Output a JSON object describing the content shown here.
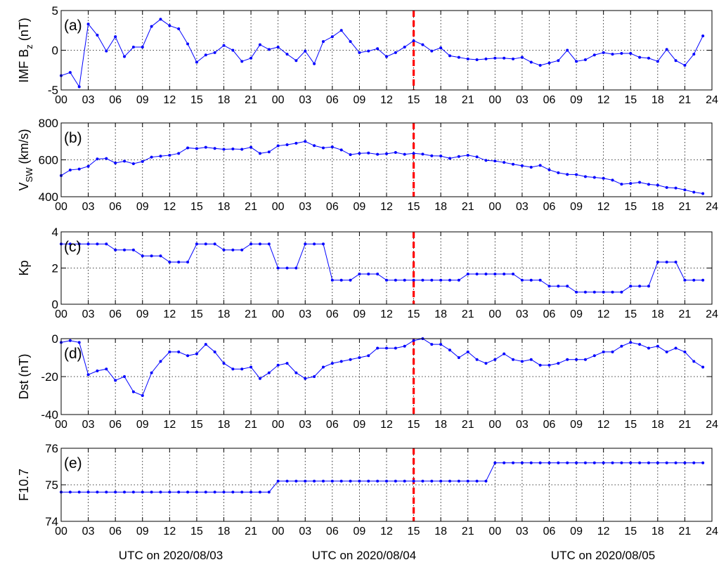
{
  "x_ticks": [
    "00",
    "03",
    "06",
    "09",
    "12",
    "15",
    "18",
    "21",
    "00",
    "03",
    "06",
    "09",
    "12",
    "15",
    "18",
    "21",
    "00",
    "03",
    "06",
    "09",
    "12",
    "15",
    "18",
    "21",
    "24"
  ],
  "date_labels": [
    "UTC on 2020/08/03",
    "UTC on 2020/08/04",
    "UTC on 2020/08/05"
  ],
  "event_marker": {
    "hour": 39,
    "color": "#ff0000"
  },
  "series_color": "#0000ff",
  "chart_data": [
    {
      "type": "line",
      "panel_label": "(a)",
      "ylabel": "IMF B",
      "ylabel_sub": "z",
      "ylabel_unit": " (nT)",
      "ylim": [
        -5,
        5
      ],
      "yticks": [
        "-5",
        "0",
        "5"
      ],
      "ytick_values": [
        -5,
        0,
        5
      ],
      "xlim": [
        0,
        72
      ],
      "grid": true,
      "x": [
        0,
        1,
        2,
        3,
        4,
        5,
        6,
        7,
        8,
        9,
        10,
        11,
        12,
        13,
        14,
        15,
        16,
        17,
        18,
        19,
        20,
        21,
        22,
        23,
        24,
        25,
        26,
        27,
        28,
        29,
        30,
        31,
        32,
        33,
        34,
        35,
        36,
        37,
        38,
        39,
        40,
        41,
        42,
        43,
        44,
        45,
        46,
        47,
        48,
        49,
        50,
        51,
        52,
        53,
        54,
        55,
        56,
        57,
        58,
        59,
        60,
        61,
        62,
        63,
        64,
        65,
        66,
        67,
        68,
        69,
        70,
        71
      ],
      "values": [
        -3.2,
        -2.8,
        -4.6,
        3.3,
        1.9,
        -0.1,
        1.7,
        -0.8,
        0.4,
        0.4,
        3.0,
        3.9,
        3.1,
        2.7,
        0.8,
        -1.5,
        -0.6,
        -0.3,
        0.6,
        0.0,
        -1.4,
        -1.0,
        0.7,
        0.1,
        0.4,
        -0.5,
        -1.3,
        -0.1,
        -1.7,
        1.1,
        1.7,
        2.5,
        1.1,
        -0.3,
        -0.1,
        0.2,
        -0.8,
        -0.3,
        0.4,
        1.2,
        0.7,
        -0.1,
        0.3,
        -0.7,
        -0.9,
        -1.1,
        -1.2,
        -1.1,
        -1.0,
        -1.0,
        -1.1,
        -0.9,
        -1.5,
        -1.9,
        -1.6,
        -1.3,
        0.0,
        -1.4,
        -1.2,
        -0.6,
        -0.3,
        -0.5,
        -0.4,
        -0.4,
        -0.9,
        -1.0,
        -1.4,
        0.1,
        -1.3,
        -1.9,
        -0.5,
        1.8
      ]
    },
    {
      "type": "line",
      "panel_label": "(b)",
      "ylabel": "V",
      "ylabel_sub": "SW",
      "ylabel_unit": " (km/s)",
      "ylim": [
        400,
        800
      ],
      "yticks": [
        "400",
        "600",
        "800"
      ],
      "ytick_values": [
        400,
        600,
        800
      ],
      "xlim": [
        0,
        72
      ],
      "grid": true,
      "x": [
        0,
        1,
        2,
        3,
        4,
        5,
        6,
        7,
        8,
        9,
        10,
        11,
        12,
        13,
        14,
        15,
        16,
        17,
        18,
        19,
        20,
        21,
        22,
        23,
        24,
        25,
        26,
        27,
        28,
        29,
        30,
        31,
        32,
        33,
        34,
        35,
        36,
        37,
        38,
        39,
        40,
        41,
        42,
        43,
        44,
        45,
        46,
        47,
        48,
        49,
        50,
        51,
        52,
        53,
        54,
        55,
        56,
        57,
        58,
        59,
        60,
        61,
        62,
        63,
        64,
        65,
        66,
        67,
        68,
        69,
        70,
        71
      ],
      "values": [
        515,
        545,
        550,
        565,
        605,
        607,
        583,
        593,
        579,
        591,
        615,
        620,
        625,
        635,
        665,
        661,
        668,
        662,
        657,
        659,
        657,
        668,
        635,
        643,
        676,
        682,
        690,
        700,
        677,
        665,
        670,
        654,
        628,
        635,
        637,
        630,
        633,
        640,
        630,
        635,
        631,
        622,
        621,
        608,
        618,
        625,
        616,
        597,
        594,
        586,
        576,
        568,
        560,
        570,
        546,
        530,
        521,
        520,
        509,
        505,
        500,
        490,
        468,
        472,
        478,
        467,
        463,
        450,
        447,
        437,
        425,
        417
      ]
    },
    {
      "type": "line",
      "panel_label": "(c)",
      "ylabel": "Kp",
      "ylabel_sub": "",
      "ylabel_unit": "",
      "ylim": [
        0,
        4
      ],
      "yticks": [
        "0",
        "2",
        "4"
      ],
      "ytick_values": [
        0,
        2,
        4
      ],
      "xlim": [
        0,
        72
      ],
      "grid": true,
      "x": [
        0,
        1,
        2,
        3,
        4,
        5,
        6,
        7,
        8,
        9,
        10,
        11,
        12,
        13,
        14,
        15,
        16,
        17,
        18,
        19,
        20,
        21,
        22,
        23,
        24,
        25,
        26,
        27,
        28,
        29,
        30,
        31,
        32,
        33,
        34,
        35,
        36,
        37,
        38,
        39,
        40,
        41,
        42,
        43,
        44,
        45,
        46,
        47,
        48,
        49,
        50,
        51,
        52,
        53,
        54,
        55,
        56,
        57,
        58,
        59,
        60,
        61,
        62,
        63,
        64,
        65,
        66,
        67,
        68,
        69,
        70,
        71
      ],
      "values": [
        3.33,
        3.33,
        3.33,
        3.33,
        3.33,
        3.33,
        3.0,
        3.0,
        3.0,
        2.67,
        2.67,
        2.67,
        2.33,
        2.33,
        2.33,
        3.33,
        3.33,
        3.33,
        3.0,
        3.0,
        3.0,
        3.33,
        3.33,
        3.33,
        2.0,
        2.0,
        2.0,
        3.33,
        3.33,
        3.33,
        1.33,
        1.33,
        1.33,
        1.67,
        1.67,
        1.67,
        1.33,
        1.33,
        1.33,
        1.33,
        1.33,
        1.33,
        1.33,
        1.33,
        1.33,
        1.67,
        1.67,
        1.67,
        1.67,
        1.67,
        1.67,
        1.33,
        1.33,
        1.33,
        1.0,
        1.0,
        1.0,
        0.67,
        0.67,
        0.67,
        0.67,
        0.67,
        0.67,
        1.0,
        1.0,
        1.0,
        2.33,
        2.33,
        2.33,
        1.33,
        1.33,
        1.33
      ]
    },
    {
      "type": "line",
      "panel_label": "(d)",
      "ylabel": "Dst (nT)",
      "ylabel_sub": "",
      "ylabel_unit": "",
      "ylim": [
        -40,
        0
      ],
      "yticks": [
        "-40",
        "-20",
        "0"
      ],
      "ytick_values": [
        -40,
        -20,
        0
      ],
      "xlim": [
        0,
        72
      ],
      "grid": true,
      "x": [
        0,
        1,
        2,
        3,
        4,
        5,
        6,
        7,
        8,
        9,
        10,
        11,
        12,
        13,
        14,
        15,
        16,
        17,
        18,
        19,
        20,
        21,
        22,
        23,
        24,
        25,
        26,
        27,
        28,
        29,
        30,
        31,
        32,
        33,
        34,
        35,
        36,
        37,
        38,
        39,
        40,
        41,
        42,
        43,
        44,
        45,
        46,
        47,
        48,
        49,
        50,
        51,
        52,
        53,
        54,
        55,
        56,
        57,
        58,
        59,
        60,
        61,
        62,
        63,
        64,
        65,
        66,
        67,
        68,
        69,
        70,
        71
      ],
      "values": [
        -2,
        -1,
        -2,
        -19,
        -17,
        -16,
        -22,
        -20,
        -28,
        -30,
        -18,
        -12,
        -7,
        -7,
        -9,
        -8,
        -3,
        -7,
        -13,
        -16,
        -16,
        -15,
        -21,
        -18,
        -14,
        -13,
        -18,
        -21,
        -20,
        -15,
        -13,
        -12,
        -11,
        -10,
        -9,
        -5,
        -5,
        -5,
        -4,
        -1,
        0,
        -3,
        -3,
        -6,
        -10,
        -7,
        -11,
        -13,
        -11,
        -8,
        -11,
        -12,
        -11,
        -14,
        -14,
        -13,
        -11,
        -11,
        -11,
        -9,
        -7,
        -7,
        -4,
        -2,
        -3,
        -5,
        -4,
        -7,
        -5,
        -7,
        -12,
        -15
      ]
    },
    {
      "type": "line",
      "panel_label": "(e)",
      "ylabel": "F10.7",
      "ylabel_sub": "",
      "ylabel_unit": "",
      "ylim": [
        74,
        76
      ],
      "yticks": [
        "74",
        "75",
        "76"
      ],
      "ytick_values": [
        74,
        75,
        76
      ],
      "xlim": [
        0,
        72
      ],
      "grid": true,
      "x": [
        0,
        1,
        2,
        3,
        4,
        5,
        6,
        7,
        8,
        9,
        10,
        11,
        12,
        13,
        14,
        15,
        16,
        17,
        18,
        19,
        20,
        21,
        22,
        23,
        24,
        25,
        26,
        27,
        28,
        29,
        30,
        31,
        32,
        33,
        34,
        35,
        36,
        37,
        38,
        39,
        40,
        41,
        42,
        43,
        44,
        45,
        46,
        47,
        48,
        49,
        50,
        51,
        52,
        53,
        54,
        55,
        56,
        57,
        58,
        59,
        60,
        61,
        62,
        63,
        64,
        65,
        66,
        67,
        68,
        69,
        70,
        71
      ],
      "values": [
        74.8,
        74.8,
        74.8,
        74.8,
        74.8,
        74.8,
        74.8,
        74.8,
        74.8,
        74.8,
        74.8,
        74.8,
        74.8,
        74.8,
        74.8,
        74.8,
        74.8,
        74.8,
        74.8,
        74.8,
        74.8,
        74.8,
        74.8,
        74.8,
        75.1,
        75.1,
        75.1,
        75.1,
        75.1,
        75.1,
        75.1,
        75.1,
        75.1,
        75.1,
        75.1,
        75.1,
        75.1,
        75.1,
        75.1,
        75.1,
        75.1,
        75.1,
        75.1,
        75.1,
        75.1,
        75.1,
        75.1,
        75.1,
        75.6,
        75.6,
        75.6,
        75.6,
        75.6,
        75.6,
        75.6,
        75.6,
        75.6,
        75.6,
        75.6,
        75.6,
        75.6,
        75.6,
        75.6,
        75.6,
        75.6,
        75.6,
        75.6,
        75.6,
        75.6,
        75.6,
        75.6,
        75.6
      ]
    }
  ]
}
